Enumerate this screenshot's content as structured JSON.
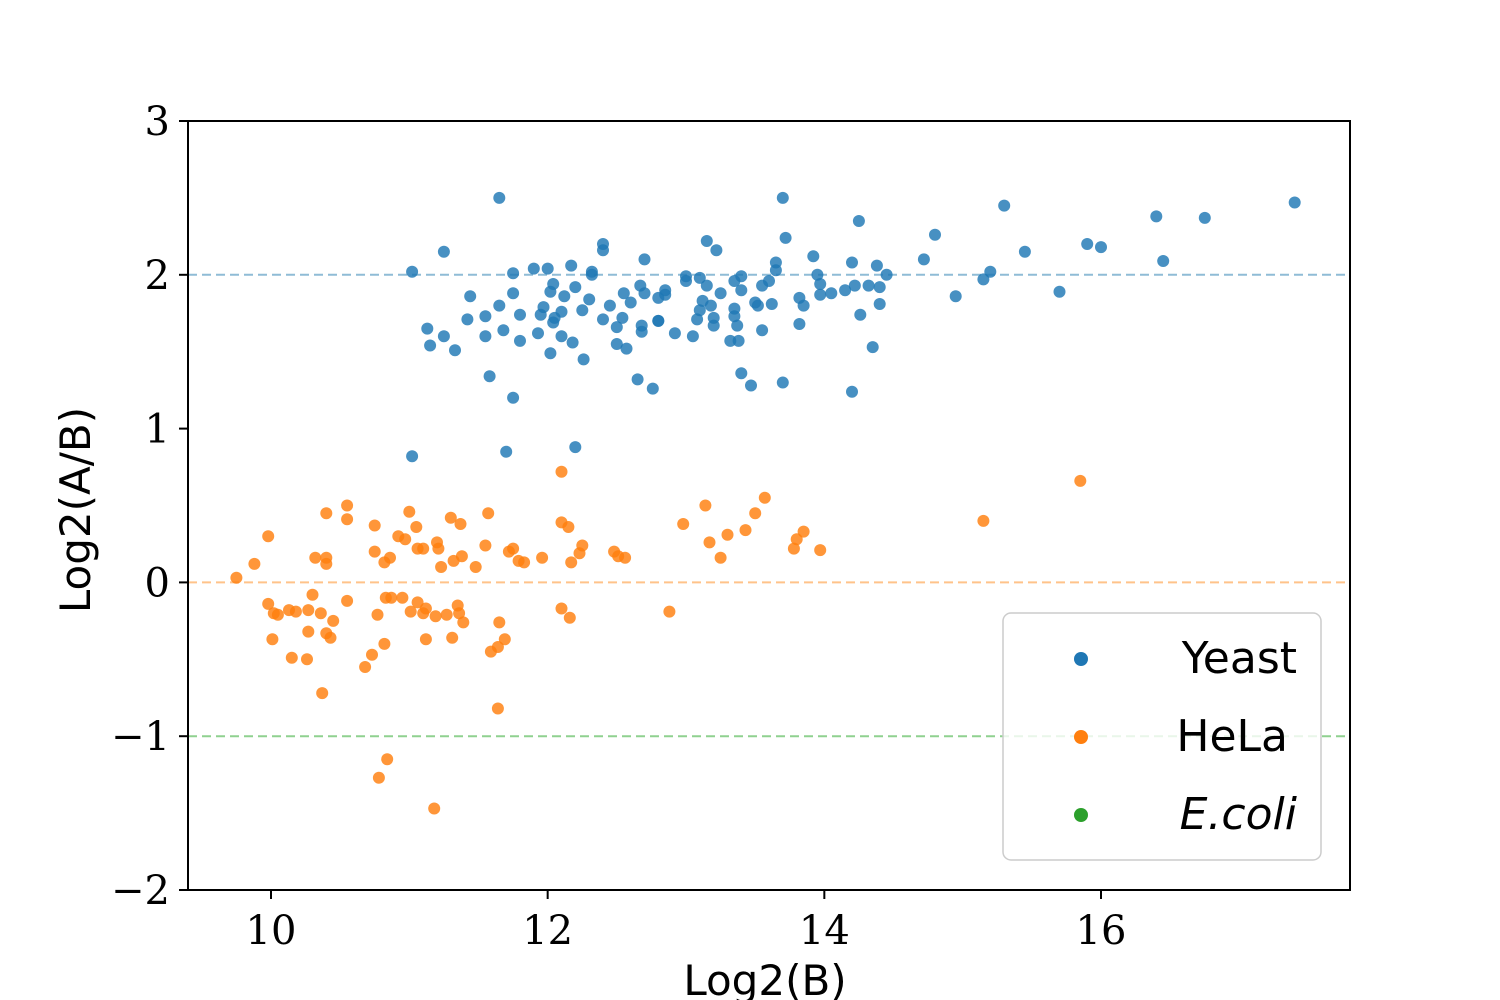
{
  "chart_data": {
    "type": "scatter",
    "title": "",
    "xlabel": "Log2(B)",
    "ylabel": "Log2(A/B)",
    "xlim": [
      9.4,
      17.8
    ],
    "ylim": [
      -2,
      3
    ],
    "xticks": [
      10,
      12,
      14,
      16
    ],
    "yticks": [
      3,
      2,
      1,
      0,
      -1,
      -2
    ],
    "xtick_labels": [
      "10",
      "12",
      "14",
      "16"
    ],
    "ytick_labels": [
      "3",
      "2",
      "1",
      "0",
      "−1",
      "−2"
    ],
    "grid": false,
    "legend_position": "lower-right",
    "reference_lines": [
      {
        "y": 2,
        "color": "#8fbcd6",
        "style": "dashed"
      },
      {
        "y": 0,
        "color": "#ffc38a",
        "style": "dashed"
      },
      {
        "y": -1,
        "color": "#8fd18f",
        "style": "dashed"
      }
    ],
    "series": [
      {
        "name": "Yeast",
        "color": "#1f77b4",
        "points": [
          [
            11.65,
            2.5
          ],
          [
            13.7,
            2.5
          ],
          [
            17.4,
            2.47
          ],
          [
            15.3,
            2.45
          ],
          [
            16.4,
            2.38
          ],
          [
            16.75,
            2.37
          ],
          [
            14.25,
            2.35
          ],
          [
            14.8,
            2.26
          ],
          [
            13.72,
            2.24
          ],
          [
            13.15,
            2.22
          ],
          [
            12.4,
            2.2
          ],
          [
            15.9,
            2.2
          ],
          [
            16.0,
            2.18
          ],
          [
            12.4,
            2.16
          ],
          [
            13.22,
            2.16
          ],
          [
            11.25,
            2.15
          ],
          [
            15.45,
            2.15
          ],
          [
            13.92,
            2.12
          ],
          [
            12.7,
            2.1
          ],
          [
            14.2,
            2.08
          ],
          [
            13.65,
            2.08
          ],
          [
            14.72,
            2.1
          ],
          [
            16.45,
            2.09
          ],
          [
            14.38,
            2.06
          ],
          [
            12.17,
            2.06
          ],
          [
            13.65,
            2.03
          ],
          [
            11.9,
            2.04
          ],
          [
            12.0,
            2.04
          ],
          [
            11.75,
            2.01
          ],
          [
            11.02,
            2.02
          ],
          [
            12.32,
            2.02
          ],
          [
            13.0,
            1.99
          ],
          [
            13.1,
            1.98
          ],
          [
            13.4,
            1.99
          ],
          [
            15.2,
            2.02
          ],
          [
            15.15,
            1.97
          ],
          [
            14.45,
            2.0
          ],
          [
            13.95,
            2.0
          ],
          [
            12.32,
            2.0
          ],
          [
            13.35,
            1.96
          ],
          [
            12.04,
            1.94
          ],
          [
            12.67,
            1.93
          ],
          [
            13.0,
            1.96
          ],
          [
            13.6,
            1.96
          ],
          [
            13.97,
            1.94
          ],
          [
            14.22,
            1.93
          ],
          [
            14.32,
            1.93
          ],
          [
            14.4,
            1.92
          ],
          [
            13.15,
            1.93
          ],
          [
            12.2,
            1.92
          ],
          [
            12.85,
            1.9
          ],
          [
            13.55,
            1.93
          ],
          [
            13.4,
            1.9
          ],
          [
            14.15,
            1.9
          ],
          [
            12.02,
            1.89
          ],
          [
            11.75,
            1.88
          ],
          [
            12.55,
            1.88
          ],
          [
            12.7,
            1.88
          ],
          [
            12.85,
            1.87
          ],
          [
            13.25,
            1.88
          ],
          [
            13.97,
            1.87
          ],
          [
            14.05,
            1.88
          ],
          [
            14.95,
            1.86
          ],
          [
            15.7,
            1.89
          ],
          [
            11.44,
            1.86
          ],
          [
            12.12,
            1.86
          ],
          [
            12.3,
            1.84
          ],
          [
            12.8,
            1.85
          ],
          [
            13.5,
            1.82
          ],
          [
            13.82,
            1.85
          ],
          [
            14.4,
            1.81
          ],
          [
            13.52,
            1.8
          ],
          [
            13.62,
            1.81
          ],
          [
            13.85,
            1.8
          ],
          [
            12.6,
            1.82
          ],
          [
            11.65,
            1.8
          ],
          [
            12.45,
            1.8
          ],
          [
            13.35,
            1.78
          ],
          [
            11.97,
            1.79
          ],
          [
            12.25,
            1.77
          ],
          [
            13.18,
            1.8
          ],
          [
            13.1,
            1.77
          ],
          [
            12.1,
            1.76
          ],
          [
            11.55,
            1.73
          ],
          [
            11.42,
            1.71
          ],
          [
            11.8,
            1.74
          ],
          [
            11.95,
            1.74
          ],
          [
            12.05,
            1.72
          ],
          [
            12.4,
            1.71
          ],
          [
            12.54,
            1.72
          ],
          [
            12.8,
            1.7
          ],
          [
            13.08,
            1.71
          ],
          [
            13.2,
            1.72
          ],
          [
            13.35,
            1.73
          ],
          [
            14.26,
            1.74
          ],
          [
            11.13,
            1.65
          ],
          [
            11.68,
            1.64
          ],
          [
            12.04,
            1.69
          ],
          [
            12.5,
            1.66
          ],
          [
            12.68,
            1.67
          ],
          [
            12.92,
            1.62
          ],
          [
            13.05,
            1.6
          ],
          [
            13.2,
            1.67
          ],
          [
            13.37,
            1.67
          ],
          [
            13.82,
            1.68
          ],
          [
            11.25,
            1.6
          ],
          [
            11.55,
            1.6
          ],
          [
            11.8,
            1.57
          ],
          [
            11.93,
            1.62
          ],
          [
            12.1,
            1.6
          ],
          [
            12.18,
            1.56
          ],
          [
            12.5,
            1.55
          ],
          [
            12.68,
            1.63
          ],
          [
            13.38,
            1.57
          ],
          [
            13.32,
            1.57
          ],
          [
            13.55,
            1.64
          ],
          [
            11.15,
            1.54
          ],
          [
            11.33,
            1.51
          ],
          [
            12.02,
            1.49
          ],
          [
            12.26,
            1.45
          ],
          [
            12.57,
            1.52
          ],
          [
            14.35,
            1.53
          ],
          [
            11.58,
            1.34
          ],
          [
            12.65,
            1.32
          ],
          [
            12.76,
            1.26
          ],
          [
            13.4,
            1.36
          ],
          [
            13.47,
            1.28
          ],
          [
            13.7,
            1.3
          ],
          [
            14.2,
            1.24
          ],
          [
            11.75,
            1.2
          ],
          [
            12.2,
            0.88
          ],
          [
            11.7,
            0.85
          ],
          [
            11.02,
            0.82
          ],
          [
            12.8,
            1.7
          ],
          [
            13.12,
            1.83
          ]
        ]
      },
      {
        "name": "HeLa",
        "color": "#ff7f0e",
        "points": [
          [
            15.85,
            0.66
          ],
          [
            12.1,
            0.72
          ],
          [
            13.57,
            0.55
          ],
          [
            10.55,
            0.5
          ],
          [
            13.14,
            0.5
          ],
          [
            10.4,
            0.45
          ],
          [
            11.0,
            0.46
          ],
          [
            11.57,
            0.45
          ],
          [
            13.5,
            0.45
          ],
          [
            10.55,
            0.41
          ],
          [
            11.3,
            0.42
          ],
          [
            11.37,
            0.38
          ],
          [
            12.1,
            0.39
          ],
          [
            12.98,
            0.38
          ],
          [
            15.15,
            0.4
          ],
          [
            10.75,
            0.37
          ],
          [
            11.05,
            0.36
          ],
          [
            12.15,
            0.36
          ],
          [
            13.43,
            0.34
          ],
          [
            13.85,
            0.33
          ],
          [
            9.98,
            0.3
          ],
          [
            10.92,
            0.3
          ],
          [
            10.97,
            0.28
          ],
          [
            13.3,
            0.31
          ],
          [
            13.8,
            0.28
          ],
          [
            11.2,
            0.26
          ],
          [
            11.55,
            0.24
          ],
          [
            11.75,
            0.22
          ],
          [
            12.25,
            0.24
          ],
          [
            13.17,
            0.26
          ],
          [
            11.06,
            0.22
          ],
          [
            11.1,
            0.22
          ],
          [
            11.21,
            0.22
          ],
          [
            10.75,
            0.2
          ],
          [
            12.48,
            0.2
          ],
          [
            13.78,
            0.22
          ],
          [
            13.97,
            0.21
          ],
          [
            12.23,
            0.19
          ],
          [
            11.72,
            0.2
          ],
          [
            11.38,
            0.17
          ],
          [
            12.51,
            0.17
          ],
          [
            12.56,
            0.16
          ],
          [
            10.32,
            0.16
          ],
          [
            10.4,
            0.16
          ],
          [
            10.86,
            0.16
          ],
          [
            11.32,
            0.14
          ],
          [
            11.79,
            0.14
          ],
          [
            11.83,
            0.13
          ],
          [
            11.96,
            0.16
          ],
          [
            12.17,
            0.13
          ],
          [
            13.25,
            0.16
          ],
          [
            9.88,
            0.12
          ],
          [
            10.4,
            0.12
          ],
          [
            10.82,
            0.13
          ],
          [
            11.23,
            0.1
          ],
          [
            11.48,
            0.1
          ],
          [
            9.75,
            0.03
          ],
          [
            10.3,
            -0.08
          ],
          [
            10.87,
            -0.1
          ],
          [
            10.83,
            -0.1
          ],
          [
            10.95,
            -0.1
          ],
          [
            11.06,
            -0.13
          ],
          [
            11.35,
            -0.15
          ],
          [
            10.13,
            -0.18
          ],
          [
            10.18,
            -0.19
          ],
          [
            10.27,
            -0.18
          ],
          [
            9.98,
            -0.14
          ],
          [
            10.55,
            -0.12
          ],
          [
            12.1,
            -0.17
          ],
          [
            11.12,
            -0.17
          ],
          [
            11.01,
            -0.19
          ],
          [
            11.1,
            -0.2
          ],
          [
            11.27,
            -0.21
          ],
          [
            11.36,
            -0.2
          ],
          [
            10.36,
            -0.2
          ],
          [
            10.02,
            -0.2
          ],
          [
            10.05,
            -0.21
          ],
          [
            10.77,
            -0.21
          ],
          [
            12.88,
            -0.19
          ],
          [
            11.19,
            -0.22
          ],
          [
            10.45,
            -0.25
          ],
          [
            12.16,
            -0.23
          ],
          [
            11.39,
            -0.26
          ],
          [
            11.65,
            -0.26
          ],
          [
            10.27,
            -0.32
          ],
          [
            10.4,
            -0.33
          ],
          [
            10.43,
            -0.36
          ],
          [
            11.12,
            -0.37
          ],
          [
            11.31,
            -0.36
          ],
          [
            11.69,
            -0.37
          ],
          [
            10.01,
            -0.37
          ],
          [
            10.82,
            -0.4
          ],
          [
            11.64,
            -0.42
          ],
          [
            11.59,
            -0.45
          ],
          [
            10.73,
            -0.47
          ],
          [
            10.15,
            -0.49
          ],
          [
            10.26,
            -0.5
          ],
          [
            10.68,
            -0.55
          ],
          [
            10.37,
            -0.72
          ],
          [
            11.64,
            -0.82
          ],
          [
            10.84,
            -1.15
          ],
          [
            10.78,
            -1.27
          ],
          [
            11.18,
            -1.47
          ]
        ]
      },
      {
        "name": "E.coli",
        "color": "#2ca02c",
        "points": []
      }
    ]
  }
}
